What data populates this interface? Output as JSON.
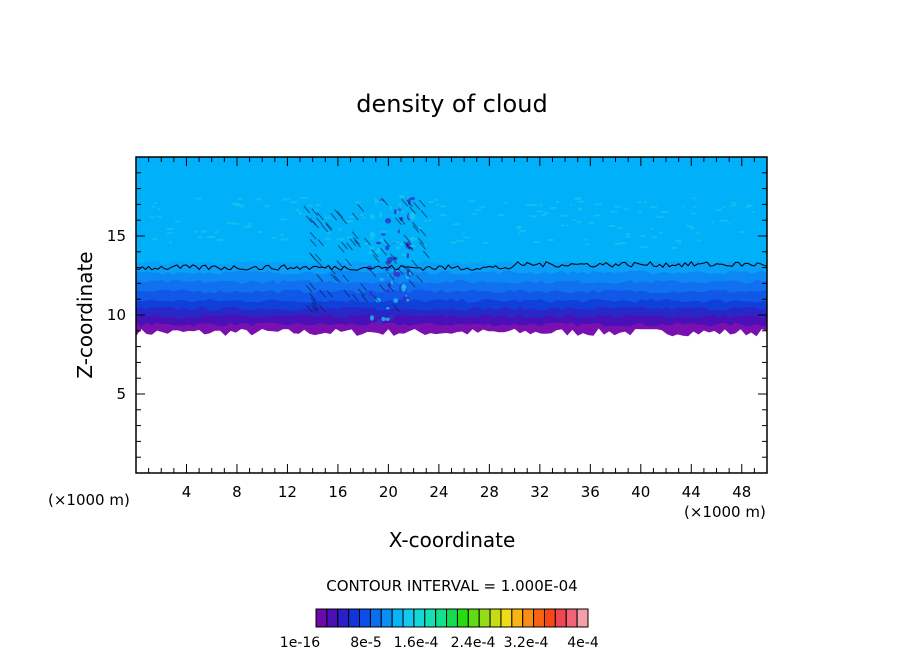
{
  "chart_data": {
    "type": "heatmap",
    "title": "density of cloud",
    "xlabel": "X-coordinate",
    "ylabel": "Z-coordinate",
    "x_unit_left": "(×1000 m)",
    "x_unit_right": "(×1000 m)",
    "xlim": [
      0,
      50
    ],
    "ylim": [
      0,
      20
    ],
    "x_ticks": [
      "4",
      "8",
      "12",
      "16",
      "20",
      "24",
      "28",
      "32",
      "36",
      "40",
      "44",
      "48"
    ],
    "y_ticks": [
      "5",
      "10",
      "15"
    ],
    "contour_interval_text": "CONTOUR INTERVAL = 1.000E-04",
    "colorbar": {
      "labels": [
        "1e-16",
        "8e-5",
        "1.6e-4",
        "2.4e-4",
        "3.2e-4",
        "4e-4"
      ],
      "colors": [
        "#6a0aa8",
        "#4b0fb8",
        "#2a1fc8",
        "#1235d8",
        "#0a50e8",
        "#0a6ef0",
        "#0a90f5",
        "#0ab4f8",
        "#14c8f0",
        "#14d8d8",
        "#14e0b4",
        "#14e08a",
        "#14dc50",
        "#28dc14",
        "#60dc14",
        "#96dc14",
        "#c8dc14",
        "#f0dc14",
        "#f8b414",
        "#f88c14",
        "#f86414",
        "#f84614",
        "#f04650",
        "#f06478",
        "#f4a0a8"
      ]
    },
    "cloud": {
      "base_km": 9.0,
      "top_km": 20.0,
      "contour_line_km": 13.0,
      "layers": [
        {
          "z": [
            8.9,
            9.4
          ],
          "color": "#7a10b0"
        },
        {
          "z": [
            9.4,
            9.9
          ],
          "color": "#4a10b8"
        },
        {
          "z": [
            9.9,
            10.4
          ],
          "color": "#2828c8"
        },
        {
          "z": [
            10.4,
            10.9
          ],
          "color": "#1040d8"
        },
        {
          "z": [
            10.9,
            11.5
          ],
          "color": "#1058e8"
        },
        {
          "z": [
            11.5,
            12.1
          ],
          "color": "#1070f0"
        },
        {
          "z": [
            12.1,
            12.7
          ],
          "color": "#0c88f4"
        },
        {
          "z": [
            12.7,
            13.3
          ],
          "color": "#08a0f8"
        },
        {
          "z": [
            13.3,
            20.0
          ],
          "color": "#00b0f8"
        }
      ]
    }
  }
}
